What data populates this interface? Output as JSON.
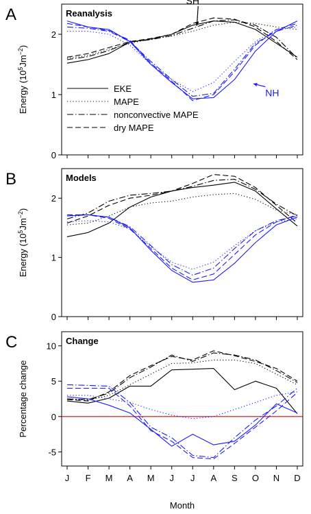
{
  "figure": {
    "xlabel": "Month",
    "months": [
      "J",
      "F",
      "M",
      "A",
      "M",
      "J",
      "J",
      "A",
      "S",
      "O",
      "N",
      "D"
    ]
  },
  "styles": {
    "sh_color": "#000000",
    "nh_color": "#1a1aff",
    "zero_line_color": "#e00000",
    "linestyles": {
      "EKE": "solid",
      "MAPE": "dotted",
      "nonconvective MAPE": "dash-dot",
      "dry MAPE": "dashed"
    }
  },
  "legend": {
    "entries": [
      "EKE",
      "MAPE",
      "nonconvective MAPE",
      "dry MAPE"
    ],
    "placement": "lower-left of panel A"
  },
  "chart_data": [
    {
      "panel": "A",
      "title": "Reanalysis",
      "type": "line",
      "ylabel": "Energy (10^5 Jm^-2)",
      "ylabel_parts": {
        "pre": "Energy (10",
        "exp1": "5",
        "mid": "Jm",
        "exp2": "−2",
        "post": ")"
      },
      "ylim": [
        0,
        2.5
      ],
      "yticks": [
        0,
        1,
        2
      ],
      "annotations": [
        {
          "text": "SH",
          "color": "#000000",
          "month": 7,
          "value": 2.5,
          "arrow_to_month": 7.2,
          "arrow_to_value": 2.14
        },
        {
          "text": "NH",
          "color": "#1a1aff",
          "month": 10.8,
          "value": 0.97,
          "arrow_to_month": 9.9,
          "arrow_to_value": 1.18
        }
      ],
      "series": [
        {
          "hemisphere": "SH",
          "style": "EKE",
          "values": [
            1.52,
            1.58,
            1.68,
            1.87,
            1.92,
            2.0,
            2.15,
            2.22,
            2.2,
            2.08,
            1.85,
            1.62
          ]
        },
        {
          "hemisphere": "SH",
          "style": "MAPE",
          "values": [
            1.6,
            1.65,
            1.75,
            1.85,
            1.92,
            1.97,
            2.05,
            2.15,
            2.2,
            2.18,
            2.12,
            2.08
          ]
        },
        {
          "hemisphere": "SH",
          "style": "nonconvective MAPE",
          "values": [
            1.58,
            1.63,
            1.73,
            1.87,
            1.91,
            1.98,
            2.1,
            2.22,
            2.24,
            2.15,
            1.95,
            1.6
          ]
        },
        {
          "hemisphere": "SH",
          "style": "dry MAPE",
          "values": [
            1.62,
            1.68,
            1.78,
            1.88,
            1.93,
            2.0,
            2.18,
            2.27,
            2.25,
            2.12,
            1.88,
            1.58
          ]
        },
        {
          "hemisphere": "NH",
          "style": "EKE",
          "values": [
            2.22,
            2.12,
            2.08,
            1.88,
            1.5,
            1.2,
            0.93,
            0.95,
            1.25,
            1.72,
            2.05,
            2.22
          ]
        },
        {
          "hemisphere": "NH",
          "style": "MAPE",
          "values": [
            2.05,
            2.05,
            2.0,
            1.82,
            1.5,
            1.25,
            1.05,
            1.2,
            1.55,
            1.88,
            2.08,
            2.12
          ]
        },
        {
          "hemisphere": "NH",
          "style": "nonconvective MAPE",
          "values": [
            2.12,
            2.1,
            2.05,
            1.88,
            1.55,
            1.25,
            0.97,
            1.02,
            1.42,
            1.85,
            2.05,
            2.15
          ]
        },
        {
          "hemisphere": "NH",
          "style": "dry MAPE",
          "values": [
            2.18,
            2.12,
            2.06,
            1.9,
            1.52,
            1.22,
            0.9,
            1.0,
            1.38,
            1.82,
            2.08,
            2.18
          ]
        }
      ]
    },
    {
      "panel": "B",
      "title": "Models",
      "type": "line",
      "ylabel": "Energy (10^5 Jm^-2)",
      "ylabel_parts": {
        "pre": "Energy (10",
        "exp1": "5",
        "mid": "Jm",
        "exp2": "−2",
        "post": ")"
      },
      "ylim": [
        0,
        2.5
      ],
      "yticks": [
        0,
        1,
        2
      ],
      "series": [
        {
          "hemisphere": "SH",
          "style": "EKE",
          "values": [
            1.35,
            1.42,
            1.58,
            1.85,
            2.02,
            2.12,
            2.18,
            2.22,
            2.27,
            2.12,
            1.82,
            1.53
          ]
        },
        {
          "hemisphere": "SH",
          "style": "MAPE",
          "values": [
            1.55,
            1.58,
            1.7,
            1.85,
            1.92,
            1.95,
            2.02,
            2.06,
            2.08,
            1.98,
            1.8,
            1.72
          ]
        },
        {
          "hemisphere": "SH",
          "style": "nonconvective MAPE",
          "values": [
            1.65,
            1.75,
            1.95,
            2.05,
            2.08,
            2.12,
            2.2,
            2.3,
            2.32,
            2.15,
            1.9,
            1.7
          ]
        },
        {
          "hemisphere": "SH",
          "style": "dry MAPE",
          "values": [
            1.58,
            1.7,
            1.88,
            2.0,
            2.05,
            2.12,
            2.25,
            2.4,
            2.37,
            2.18,
            1.88,
            1.58
          ]
        },
        {
          "hemisphere": "NH",
          "style": "EKE",
          "values": [
            1.7,
            1.72,
            1.68,
            1.5,
            1.12,
            0.78,
            0.58,
            0.62,
            0.9,
            1.25,
            1.55,
            1.68
          ]
        },
        {
          "hemisphere": "NH",
          "style": "MAPE",
          "values": [
            1.6,
            1.62,
            1.6,
            1.48,
            1.18,
            0.92,
            0.8,
            0.92,
            1.2,
            1.45,
            1.6,
            1.65
          ]
        },
        {
          "hemisphere": "NH",
          "style": "nonconvective MAPE",
          "values": [
            1.7,
            1.72,
            1.68,
            1.52,
            1.2,
            0.88,
            0.7,
            0.82,
            1.15,
            1.45,
            1.62,
            1.7
          ]
        },
        {
          "hemisphere": "NH",
          "style": "dry MAPE",
          "values": [
            1.72,
            1.72,
            1.66,
            1.48,
            1.15,
            0.82,
            0.62,
            0.72,
            1.05,
            1.38,
            1.6,
            1.72
          ]
        }
      ]
    },
    {
      "panel": "C",
      "title": "Change",
      "type": "line",
      "ylabel": "Percentage change",
      "ylim": [
        -7,
        12
      ],
      "yticks": [
        -5,
        0,
        5,
        10
      ],
      "zero_line": true,
      "series": [
        {
          "hemisphere": "SH",
          "style": "EKE",
          "values": [
            2.2,
            1.9,
            2.6,
            4.3,
            4.3,
            6.6,
            6.7,
            6.8,
            3.8,
            5.0,
            4.0,
            0.4
          ]
        },
        {
          "hemisphere": "SH",
          "style": "MAPE",
          "values": [
            2.5,
            2.3,
            3.0,
            4.5,
            6.0,
            7.5,
            7.6,
            8.0,
            8.0,
            7.5,
            6.0,
            4.5
          ]
        },
        {
          "hemisphere": "SH",
          "style": "nonconvective MAPE",
          "values": [
            2.5,
            2.4,
            3.3,
            5.5,
            7.0,
            8.7,
            7.8,
            9.0,
            8.7,
            8.0,
            6.5,
            4.8
          ]
        },
        {
          "hemisphere": "SH",
          "style": "dry MAPE",
          "values": [
            2.4,
            2.2,
            3.5,
            5.8,
            7.2,
            8.5,
            8.0,
            9.3,
            8.6,
            7.8,
            6.8,
            5.0
          ]
        },
        {
          "hemisphere": "NH",
          "style": "EKE",
          "values": [
            2.8,
            2.5,
            1.6,
            0.5,
            -1.8,
            -4.2,
            -2.5,
            -4.0,
            -3.5,
            -1.2,
            1.8,
            0.5
          ]
        },
        {
          "hemisphere": "NH",
          "style": "MAPE",
          "values": [
            3.0,
            3.0,
            2.5,
            2.0,
            1.0,
            0.2,
            -0.3,
            0.0,
            1.0,
            2.0,
            3.0,
            3.5
          ]
        },
        {
          "hemisphere": "NH",
          "style": "nonconvective MAPE",
          "values": [
            4.5,
            4.4,
            4.3,
            2.0,
            -1.5,
            -3.0,
            -5.5,
            -5.8,
            -3.0,
            -0.5,
            1.5,
            4.0
          ]
        },
        {
          "hemisphere": "NH",
          "style": "dry MAPE",
          "values": [
            4.0,
            4.0,
            4.0,
            1.5,
            -2.0,
            -3.5,
            -5.8,
            -6.0,
            -3.8,
            -1.5,
            0.8,
            3.4
          ]
        }
      ]
    }
  ]
}
